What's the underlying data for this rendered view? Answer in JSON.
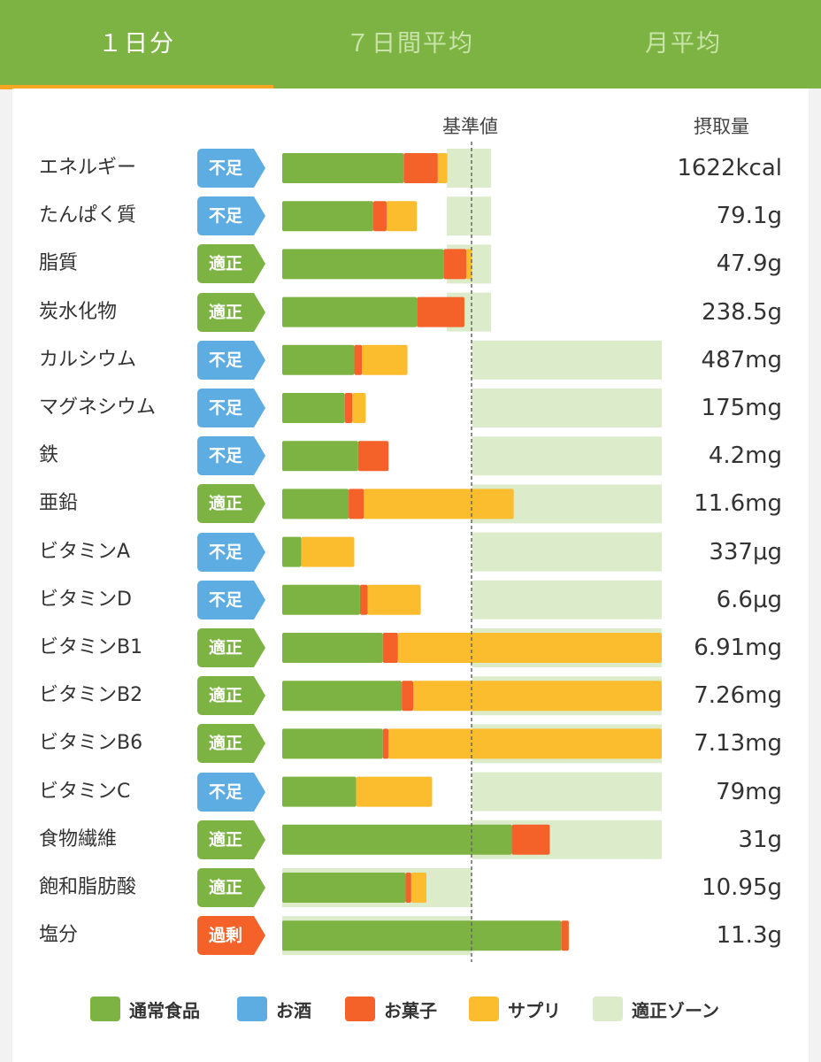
{
  "tabs": [
    {
      "label": "１日分",
      "active": true
    },
    {
      "label": "７日間平均",
      "active": false
    },
    {
      "label": "月平均",
      "active": false
    }
  ],
  "header": {
    "baseline": "基準値",
    "intake": "摂取量"
  },
  "status_colors": {
    "不足": "#5dade2",
    "適正": "#7cb342",
    "過剰": "#f4622a"
  },
  "legend": [
    {
      "label": "通常食品",
      "color": "#7cb342"
    },
    {
      "label": "お酒",
      "color": "#5dade2"
    },
    {
      "label": "お菓子",
      "color": "#f4622a"
    },
    {
      "label": "サプリ",
      "color": "#fbbc2d"
    },
    {
      "label": "適正ゾーン",
      "color": "#dceccb"
    }
  ],
  "chart_data": {
    "type": "bar",
    "stacked": true,
    "orientation": "horizontal",
    "unit": "% of 基準値",
    "xlim": [
      0,
      200
    ],
    "reference_line": 100,
    "series_names": [
      "通常食品",
      "お酒",
      "お菓子",
      "サプリ"
    ],
    "rows": [
      {
        "name": "エネルギー",
        "status": "不足",
        "value": "1622kcal",
        "normal": 64,
        "alcohol": 0,
        "sweets": 18,
        "supplement": 5,
        "zone": [
          90,
          110
        ]
      },
      {
        "name": "たんぱく質",
        "status": "不足",
        "value": "79.1g",
        "normal": 48,
        "alcohol": 0,
        "sweets": 7,
        "supplement": 16,
        "zone": [
          90,
          110
        ]
      },
      {
        "name": "脂質",
        "status": "適正",
        "value": "47.9g",
        "normal": 85,
        "alcohol": 0,
        "sweets": 12,
        "supplement": 3,
        "zone": [
          90,
          110
        ]
      },
      {
        "name": "炭水化物",
        "status": "適正",
        "value": "238.5g",
        "normal": 71,
        "alcohol": 0,
        "sweets": 25,
        "supplement": 0,
        "zone": [
          90,
          110
        ]
      },
      {
        "name": "カルシウム",
        "status": "不足",
        "value": "487mg",
        "normal": 38,
        "alcohol": 0,
        "sweets": 4,
        "supplement": 24,
        "zone": [
          100,
          200
        ]
      },
      {
        "name": "マグネシウム",
        "status": "不足",
        "value": "175mg",
        "normal": 33,
        "alcohol": 0,
        "sweets": 4,
        "supplement": 7,
        "zone": [
          100,
          200
        ]
      },
      {
        "name": "鉄",
        "status": "不足",
        "value": "4.2mg",
        "normal": 40,
        "alcohol": 0,
        "sweets": 16,
        "supplement": 0,
        "zone": [
          100,
          200
        ]
      },
      {
        "name": "亜鉛",
        "status": "適正",
        "value": "11.6mg",
        "normal": 35,
        "alcohol": 0,
        "sweets": 8,
        "supplement": 79,
        "zone": [
          100,
          200
        ]
      },
      {
        "name": "ビタミンA",
        "status": "不足",
        "value": "337μg",
        "normal": 10,
        "alcohol": 0,
        "sweets": 0,
        "supplement": 28,
        "zone": [
          100,
          200
        ]
      },
      {
        "name": "ビタミンD",
        "status": "不足",
        "value": "6.6μg",
        "normal": 41,
        "alcohol": 0,
        "sweets": 4,
        "supplement": 28,
        "zone": [
          100,
          200
        ]
      },
      {
        "name": "ビタミンB1",
        "status": "適正",
        "value": "6.91mg",
        "normal": 53,
        "alcohol": 0,
        "sweets": 8,
        "supplement": 139,
        "zone": [
          100,
          200
        ]
      },
      {
        "name": "ビタミンB2",
        "status": "適正",
        "value": "7.26mg",
        "normal": 63,
        "alcohol": 0,
        "sweets": 6,
        "supplement": 131,
        "zone": [
          100,
          200
        ]
      },
      {
        "name": "ビタミンB6",
        "status": "適正",
        "value": "7.13mg",
        "normal": 53,
        "alcohol": 0,
        "sweets": 3,
        "supplement": 144,
        "zone": [
          100,
          200
        ]
      },
      {
        "name": "ビタミンC",
        "status": "不足",
        "value": "79mg",
        "normal": 39,
        "alcohol": 0,
        "sweets": 0,
        "supplement": 40,
        "zone": [
          100,
          200
        ]
      },
      {
        "name": "食物繊維",
        "status": "適正",
        "value": "31g",
        "normal": 121,
        "alcohol": 0,
        "sweets": 20,
        "supplement": 0,
        "zone": [
          100,
          200
        ]
      },
      {
        "name": "飽和脂肪酸",
        "status": "適正",
        "value": "10.95g",
        "normal": 65,
        "alcohol": 0,
        "sweets": 3,
        "supplement": 8,
        "zone": [
          0,
          100
        ]
      },
      {
        "name": "塩分",
        "status": "過剰",
        "value": "11.3g",
        "normal": 147,
        "alcohol": 0,
        "sweets": 4,
        "supplement": 0,
        "zone": [
          0,
          100
        ]
      }
    ]
  }
}
